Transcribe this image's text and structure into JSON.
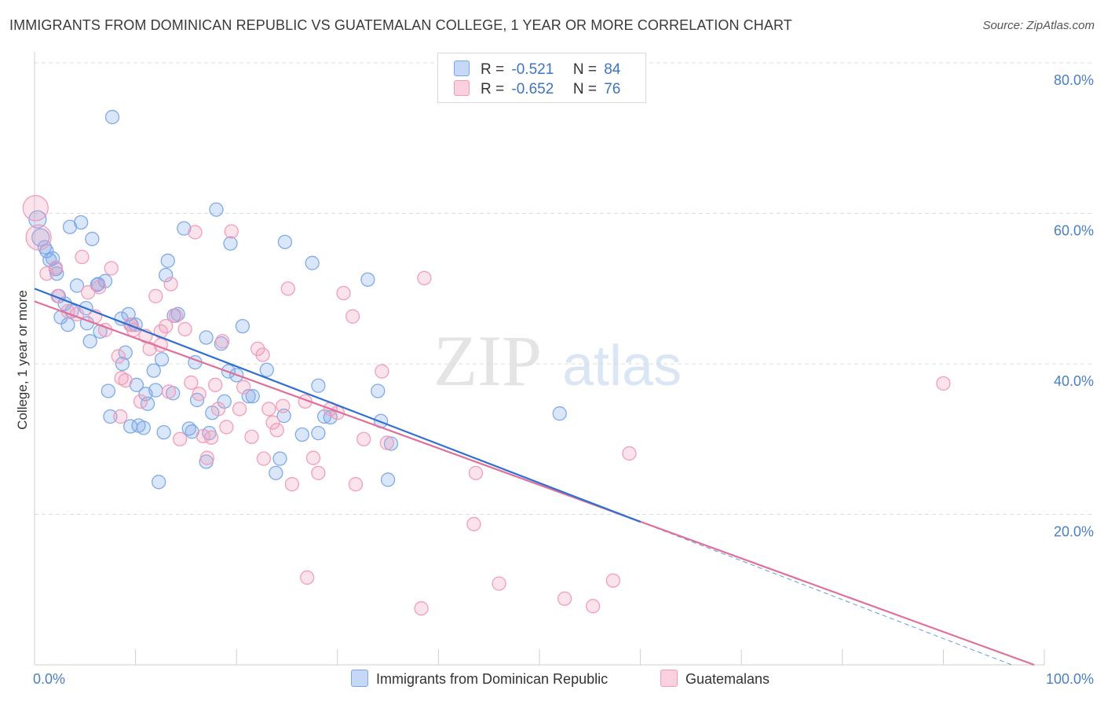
{
  "title": "IMMIGRANTS FROM DOMINICAN REPUBLIC VS GUATEMALAN COLLEGE, 1 YEAR OR MORE CORRELATION CHART",
  "source": "Source: ZipAtlas.com",
  "watermark": {
    "zip": "ZIP",
    "atlas": "atlas"
  },
  "stats": [
    {
      "r_label": "R =",
      "r_value": "-0.521",
      "n_label": "N =",
      "n_value": "84",
      "color": "#7aa7e8"
    },
    {
      "r_label": "R =",
      "r_value": "-0.652",
      "n_label": "N =",
      "n_value": "76",
      "color": "#f19ab7"
    }
  ],
  "chart_data": {
    "type": "scatter",
    "xlabel": "",
    "ylabel": "College, 1 year or more",
    "xlim": [
      0,
      100
    ],
    "ylim": [
      0,
      80
    ],
    "x_tick_labels": [
      "0.0%",
      "100.0%"
    ],
    "y_ticks": [
      20,
      40,
      60,
      80
    ],
    "y_tick_labels": [
      "20.0%",
      "40.0%",
      "60.0%",
      "80.0%"
    ],
    "grid": true,
    "legend_position": "bottom",
    "series": [
      {
        "name": "Immigrants from Dominican Republic",
        "color": "#7aa7e8",
        "line_color": "#2f6fd1",
        "trend": {
          "x": [
            0,
            60
          ],
          "y": [
            50.0,
            19.0
          ]
        },
        "points": [
          [
            0.3,
            59.2
          ],
          [
            0.6,
            56.8
          ],
          [
            1.2,
            55.0
          ],
          [
            1.5,
            53.8
          ],
          [
            2.2,
            52.0
          ],
          [
            3.5,
            58.2
          ],
          [
            4.6,
            58.8
          ],
          [
            5.7,
            56.6
          ],
          [
            4.2,
            50.4
          ],
          [
            5.1,
            47.4
          ],
          [
            6.3,
            50.6
          ],
          [
            7.0,
            51.0
          ],
          [
            1.8,
            54.0
          ],
          [
            1.0,
            55.5
          ],
          [
            2.4,
            49.0
          ],
          [
            2.6,
            46.2
          ],
          [
            3.3,
            45.2
          ],
          [
            3.7,
            47.0
          ],
          [
            5.2,
            45.4
          ],
          [
            5.5,
            43.0
          ],
          [
            6.5,
            44.3
          ],
          [
            7.3,
            36.4
          ],
          [
            7.7,
            72.8
          ],
          [
            8.6,
            46.0
          ],
          [
            8.7,
            40.0
          ],
          [
            9.0,
            41.5
          ],
          [
            9.3,
            46.6
          ],
          [
            9.5,
            31.7
          ],
          [
            10.0,
            45.2
          ],
          [
            10.3,
            31.8
          ],
          [
            10.1,
            37.2
          ],
          [
            10.8,
            31.5
          ],
          [
            11.2,
            34.7
          ],
          [
            11.8,
            39.1
          ],
          [
            12.3,
            24.3
          ],
          [
            12.6,
            40.6
          ],
          [
            12.8,
            30.9
          ],
          [
            13.0,
            51.8
          ],
          [
            13.2,
            53.7
          ],
          [
            13.7,
            36.1
          ],
          [
            14.2,
            46.6
          ],
          [
            14.8,
            58.0
          ],
          [
            15.3,
            31.4
          ],
          [
            15.6,
            31.0
          ],
          [
            15.9,
            40.2
          ],
          [
            16.1,
            35.2
          ],
          [
            17.0,
            27.0
          ],
          [
            17.3,
            30.8
          ],
          [
            17.6,
            33.5
          ],
          [
            18.0,
            60.5
          ],
          [
            18.5,
            42.7
          ],
          [
            19.2,
            39.0
          ],
          [
            19.4,
            56.0
          ],
          [
            20.6,
            45.0
          ],
          [
            21.2,
            35.7
          ],
          [
            21.6,
            35.7
          ],
          [
            23.0,
            39.2
          ],
          [
            24.7,
            33.1
          ],
          [
            24.8,
            56.2
          ],
          [
            24.3,
            27.4
          ],
          [
            23.9,
            25.5
          ],
          [
            26.5,
            30.6
          ],
          [
            27.5,
            53.4
          ],
          [
            28.1,
            37.1
          ],
          [
            28.7,
            33.0
          ],
          [
            28.1,
            30.8
          ],
          [
            29.3,
            32.9
          ],
          [
            33.0,
            51.2
          ],
          [
            34.0,
            36.4
          ],
          [
            34.3,
            32.4
          ],
          [
            35.3,
            29.4
          ],
          [
            35.0,
            24.6
          ],
          [
            52.0,
            33.4
          ],
          [
            11.0,
            36.0
          ],
          [
            7.5,
            33.0
          ],
          [
            9.6,
            45.2
          ],
          [
            3.0,
            48.0
          ],
          [
            6.2,
            50.5
          ],
          [
            2.1,
            52.6
          ],
          [
            13.8,
            46.4
          ],
          [
            20.0,
            38.5
          ],
          [
            17.0,
            43.5
          ],
          [
            12.0,
            36.5
          ],
          [
            18.8,
            35.0
          ]
        ]
      },
      {
        "name": "Guatemalans",
        "color": "#f19ab7",
        "line_color": "#e0709a",
        "trend": {
          "x": [
            0,
            99
          ],
          "y": [
            48.3,
            0.0
          ]
        },
        "points": [
          [
            0.1,
            60.7
          ],
          [
            0.4,
            56.8
          ],
          [
            1.2,
            52.0
          ],
          [
            2.1,
            52.8
          ],
          [
            2.3,
            49.0
          ],
          [
            3.3,
            47.0
          ],
          [
            4.2,
            46.6
          ],
          [
            4.7,
            54.2
          ],
          [
            5.3,
            49.5
          ],
          [
            6.0,
            46.3
          ],
          [
            6.4,
            50.2
          ],
          [
            7.0,
            44.5
          ],
          [
            7.6,
            52.7
          ],
          [
            8.3,
            41.0
          ],
          [
            8.6,
            38.1
          ],
          [
            9.0,
            37.8
          ],
          [
            9.5,
            45.2
          ],
          [
            9.8,
            44.5
          ],
          [
            10.5,
            35.0
          ],
          [
            11.0,
            43.7
          ],
          [
            11.4,
            42.0
          ],
          [
            12.0,
            49.0
          ],
          [
            12.5,
            44.3
          ],
          [
            13.0,
            45.0
          ],
          [
            13.3,
            36.3
          ],
          [
            13.5,
            50.6
          ],
          [
            14.0,
            46.4
          ],
          [
            14.4,
            30.0
          ],
          [
            14.9,
            44.6
          ],
          [
            15.5,
            37.5
          ],
          [
            15.9,
            57.5
          ],
          [
            16.3,
            36.0
          ],
          [
            16.7,
            30.4
          ],
          [
            17.1,
            27.5
          ],
          [
            17.5,
            30.2
          ],
          [
            17.9,
            37.2
          ],
          [
            18.2,
            34.0
          ],
          [
            18.6,
            43.0
          ],
          [
            19.0,
            31.6
          ],
          [
            19.5,
            57.6
          ],
          [
            20.3,
            34.0
          ],
          [
            20.7,
            36.9
          ],
          [
            21.5,
            30.3
          ],
          [
            22.1,
            42.0
          ],
          [
            22.6,
            41.2
          ],
          [
            23.2,
            34.0
          ],
          [
            23.6,
            32.2
          ],
          [
            24.0,
            31.2
          ],
          [
            24.6,
            34.4
          ],
          [
            25.1,
            50.0
          ],
          [
            25.5,
            24.0
          ],
          [
            27.0,
            11.6
          ],
          [
            27.6,
            27.5
          ],
          [
            28.1,
            25.5
          ],
          [
            29.3,
            34.0
          ],
          [
            30.6,
            49.4
          ],
          [
            31.5,
            46.3
          ],
          [
            31.8,
            24.0
          ],
          [
            32.6,
            30.0
          ],
          [
            34.4,
            39.0
          ],
          [
            34.9,
            29.5
          ],
          [
            38.3,
            7.5
          ],
          [
            38.6,
            51.4
          ],
          [
            43.7,
            25.5
          ],
          [
            43.5,
            18.7
          ],
          [
            46.0,
            10.8
          ],
          [
            52.5,
            8.8
          ],
          [
            55.3,
            7.8
          ],
          [
            57.3,
            11.2
          ],
          [
            58.9,
            28.1
          ],
          [
            90.0,
            37.4
          ],
          [
            22.7,
            27.4
          ],
          [
            26.8,
            35.0
          ],
          [
            12.5,
            42.5
          ],
          [
            8.5,
            33.0
          ],
          [
            30.0,
            33.5
          ]
        ]
      }
    ]
  }
}
